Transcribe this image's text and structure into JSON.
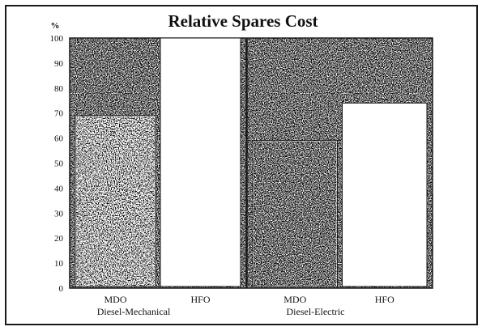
{
  "chart_data": {
    "type": "bar",
    "title": "Relative Spares Cost",
    "ylabel": "%",
    "xlabel": "",
    "ylim": [
      0,
      100
    ],
    "yticks": [
      0,
      10,
      20,
      30,
      40,
      50,
      60,
      70,
      80,
      90,
      100
    ],
    "grid": false,
    "groups": [
      {
        "name": "Diesel-Mechanical",
        "categories": [
          "MDO",
          "HFO"
        ]
      },
      {
        "name": "Diesel-Electric",
        "categories": [
          "MDO",
          "HFO"
        ]
      }
    ],
    "categories": [
      "MDO",
      "HFO",
      "MDO",
      "HFO"
    ],
    "series": [
      {
        "values": [
          69,
          100,
          59,
          74
        ]
      }
    ],
    "colors": {
      "background_fill": "#3a3a3a",
      "bar_fill": "#ffffff",
      "frame": "#1a1a1a"
    }
  }
}
